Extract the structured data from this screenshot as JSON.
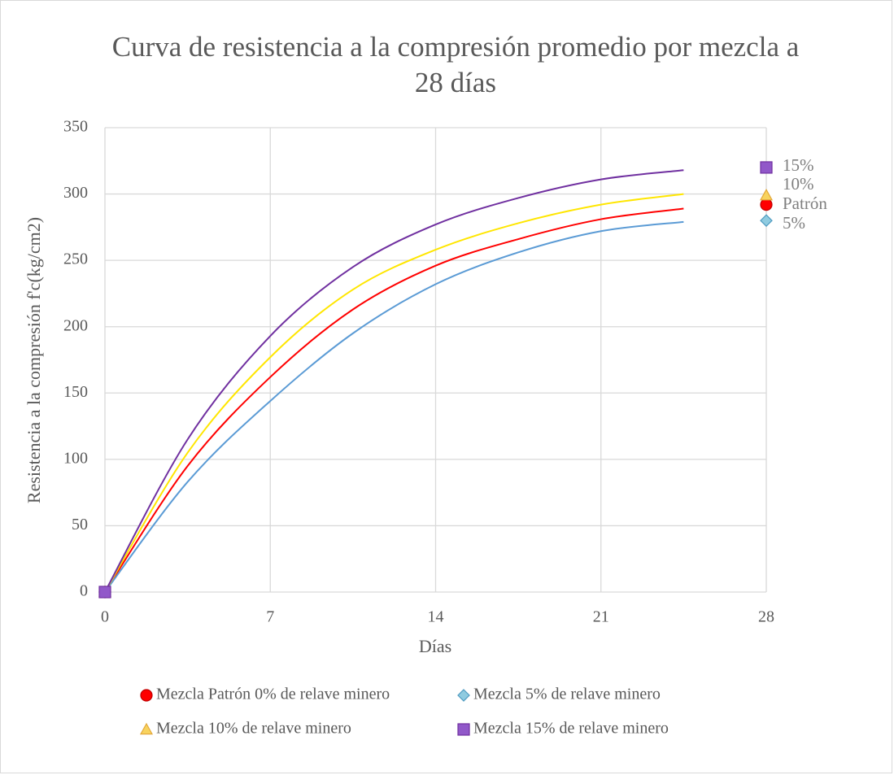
{
  "chart_data": {
    "type": "line",
    "title": "Curva de resistencia a la compresión promedio por mezcla a 28 días",
    "xlabel": "Días",
    "ylabel": "Resistencia a la compresión f'c(kg/cm2)",
    "xlim": [
      0,
      28
    ],
    "xticks": [
      0,
      7,
      14,
      21,
      28
    ],
    "ylim": [
      0,
      350
    ],
    "yticks": [
      0,
      50,
      100,
      150,
      200,
      250,
      300,
      350
    ],
    "grid": true,
    "legend": "bottom",
    "smooth": true,
    "series": [
      {
        "name": "Mezcla Patrón 0% de relave minero",
        "color": "#ff0000",
        "marker": "circle",
        "marker_color": "#ff0000",
        "x": [
          0,
          3.5,
          7,
          10.5,
          14,
          17.5,
          21,
          24.5
        ],
        "values": [
          0,
          95,
          162,
          213,
          246,
          266,
          281,
          289
        ],
        "marker_x": [
          0,
          28
        ],
        "marker_values": [
          0,
          292
        ],
        "label": "Patrón"
      },
      {
        "name": "Mezcla 5% de relave minero",
        "color": "#5b9bd5",
        "marker": "diamond",
        "marker_color": "#8fcbe0",
        "x": [
          0,
          3.5,
          7,
          10.5,
          14,
          17.5,
          21,
          24.5
        ],
        "values": [
          0,
          83,
          144,
          195,
          232,
          256,
          272,
          279
        ],
        "marker_x": [
          0,
          28
        ],
        "marker_values": [
          0,
          280
        ],
        "label": "5%"
      },
      {
        "name": "Mezcla 10% de relave minero",
        "color": "#ffe600",
        "marker": "triangle",
        "marker_color": "#f8d35e",
        "x": [
          0,
          3.5,
          7,
          10.5,
          14,
          17.5,
          21,
          24.5
        ],
        "values": [
          0,
          105,
          177,
          228,
          258,
          278,
          292,
          300
        ],
        "marker_x": [
          0,
          28
        ],
        "marker_values": [
          0,
          299
        ],
        "label": "10%"
      },
      {
        "name": "Mezcla 15% de relave minero",
        "color": "#7030a0",
        "marker": "square",
        "marker_color": "#9158c9",
        "x": [
          0,
          3.5,
          7,
          10.5,
          14,
          17.5,
          21,
          24.5
        ],
        "values": [
          0,
          115,
          193,
          245,
          277,
          297,
          311,
          318
        ],
        "marker_x": [
          0,
          28
        ],
        "marker_values": [
          0,
          320
        ],
        "label": "15%"
      }
    ]
  }
}
